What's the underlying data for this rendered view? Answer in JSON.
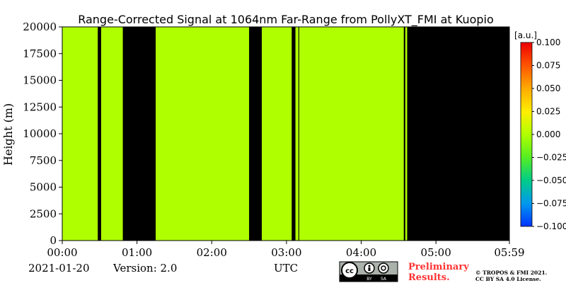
{
  "chart_data": {
    "type": "heatmap",
    "title": "Range-Corrected Signal at 1064nm Far-Range from PollyXT_FMI at Kuopio",
    "ylabel": "Height (m)",
    "xlabel": "UTC",
    "xlim_hours": [
      0,
      5.983
    ],
    "ylim": [
      0,
      20000
    ],
    "x_ticks": [
      {
        "label": "00:00",
        "value": 0
      },
      {
        "label": "01:00",
        "value": 1
      },
      {
        "label": "02:00",
        "value": 2
      },
      {
        "label": "03:00",
        "value": 3
      },
      {
        "label": "04:00",
        "value": 4
      },
      {
        "label": "05:00",
        "value": 5
      },
      {
        "label": "05:59",
        "value": 5.983
      }
    ],
    "y_ticks": [
      {
        "label": "0",
        "value": 0
      },
      {
        "label": "2500",
        "value": 2500
      },
      {
        "label": "5000",
        "value": 5000
      },
      {
        "label": "7500",
        "value": 7500
      },
      {
        "label": "10000",
        "value": 10000
      },
      {
        "label": "12500",
        "value": 12500
      },
      {
        "label": "15000",
        "value": 15000
      },
      {
        "label": "17500",
        "value": 17500
      },
      {
        "label": "20000",
        "value": 20000
      }
    ],
    "fill_color": "#b0ff00",
    "no_data_color": "#000000",
    "no_data_intervals_hours": [
      [
        0.475,
        0.52
      ],
      [
        0.81,
        1.25
      ],
      [
        2.5,
        2.67
      ],
      [
        3.07,
        3.12
      ],
      [
        3.16,
        3.17
      ],
      [
        4.57,
        4.59
      ],
      [
        4.615,
        5.983
      ]
    ],
    "colorbar": {
      "unit": "[a.u.]",
      "range": [
        -0.1,
        0.1
      ],
      "ticks": [
        "0.100",
        "0.075",
        "0.050",
        "0.025",
        "0.000",
        "−0.025",
        "−0.050",
        "−0.075",
        "−0.100"
      ],
      "tick_values": [
        0.1,
        0.075,
        0.05,
        0.025,
        0.0,
        -0.025,
        -0.05,
        -0.075,
        -0.1
      ],
      "colormap": [
        "#0033ff",
        "#0099ee",
        "#00cc88",
        "#55ee22",
        "#b0ff00",
        "#ffee00",
        "#ffaa00",
        "#ff5500",
        "#ee0000"
      ]
    }
  },
  "footer": {
    "date": "2021-01-20",
    "version": "Version: 2.0",
    "preliminary_line1": "Preliminary",
    "preliminary_line2": "Results.",
    "copyright_line1": "© TROPOS & FMI 2021.",
    "copyright_line2": "CC BY SA 4.0 License.",
    "license_badge": {
      "cc": "cc",
      "by": "BY",
      "sa": "SA"
    }
  }
}
